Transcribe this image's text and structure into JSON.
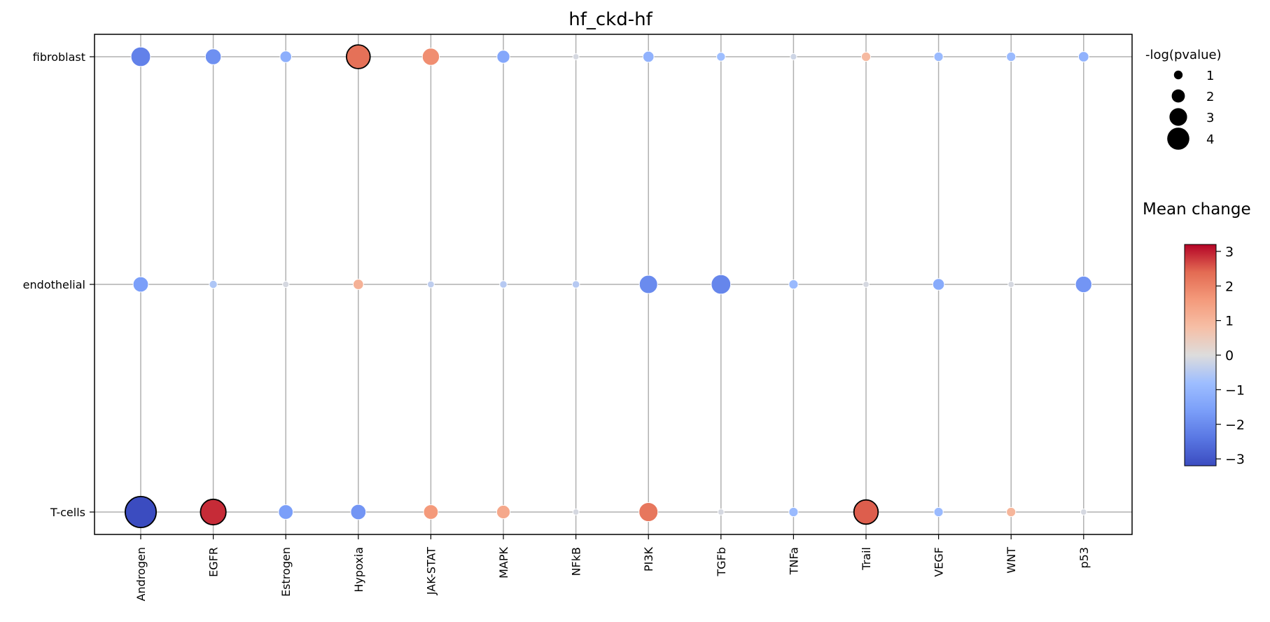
{
  "chart_data": {
    "type": "scatter",
    "title": "hf_ckd-hf",
    "xlabel": "",
    "ylabel": "",
    "categories": [
      "Androgen",
      "EGFR",
      "Estrogen",
      "Hypoxia",
      "JAK-STAT",
      "MAPK",
      "NFkB",
      "PI3K",
      "TGFb",
      "TNFa",
      "Trail",
      "VEGF",
      "WNT",
      "p53"
    ],
    "rows": [
      "fibroblast",
      "endothelial",
      "T-cells"
    ],
    "grid": true,
    "points": [
      {
        "row": "fibroblast",
        "pathway": "Androgen",
        "mean_change": -2.2,
        "neg_log_pvalue": 2.3,
        "highlighted": false
      },
      {
        "row": "fibroblast",
        "pathway": "EGFR",
        "mean_change": -1.9,
        "neg_log_pvalue": 1.7,
        "highlighted": false
      },
      {
        "row": "fibroblast",
        "pathway": "Estrogen",
        "mean_change": -1.2,
        "neg_log_pvalue": 1.0,
        "highlighted": false
      },
      {
        "row": "fibroblast",
        "pathway": "Hypoxia",
        "mean_change": 2.3,
        "neg_log_pvalue": 3.0,
        "highlighted": true
      },
      {
        "row": "fibroblast",
        "pathway": "JAK-STAT",
        "mean_change": 1.8,
        "neg_log_pvalue": 1.9,
        "highlighted": false
      },
      {
        "row": "fibroblast",
        "pathway": "MAPK",
        "mean_change": -1.4,
        "neg_log_pvalue": 1.2,
        "highlighted": false
      },
      {
        "row": "fibroblast",
        "pathway": "NFkB",
        "mean_change": -0.1,
        "neg_log_pvalue": 0.1,
        "highlighted": false
      },
      {
        "row": "fibroblast",
        "pathway": "PI3K",
        "mean_change": -1.1,
        "neg_log_pvalue": 0.9,
        "highlighted": false
      },
      {
        "row": "fibroblast",
        "pathway": "TGFb",
        "mean_change": -0.8,
        "neg_log_pvalue": 0.5,
        "highlighted": false
      },
      {
        "row": "fibroblast",
        "pathway": "TNFa",
        "mean_change": -0.2,
        "neg_log_pvalue": 0.15,
        "highlighted": false
      },
      {
        "row": "fibroblast",
        "pathway": "Trail",
        "mean_change": 0.9,
        "neg_log_pvalue": 0.6,
        "highlighted": false
      },
      {
        "row": "fibroblast",
        "pathway": "VEGF",
        "mean_change": -0.9,
        "neg_log_pvalue": 0.6,
        "highlighted": false
      },
      {
        "row": "fibroblast",
        "pathway": "WNT",
        "mean_change": -0.9,
        "neg_log_pvalue": 0.6,
        "highlighted": false
      },
      {
        "row": "fibroblast",
        "pathway": "p53",
        "mean_change": -1.1,
        "neg_log_pvalue": 0.8,
        "highlighted": false
      },
      {
        "row": "endothelial",
        "pathway": "Androgen",
        "mean_change": -1.6,
        "neg_log_pvalue": 1.6,
        "highlighted": false
      },
      {
        "row": "endothelial",
        "pathway": "EGFR",
        "mean_change": -0.6,
        "neg_log_pvalue": 0.4,
        "highlighted": false
      },
      {
        "row": "endothelial",
        "pathway": "Estrogen",
        "mean_change": -0.1,
        "neg_log_pvalue": 0.15,
        "highlighted": false
      },
      {
        "row": "endothelial",
        "pathway": "Hypoxia",
        "mean_change": 1.1,
        "neg_log_pvalue": 0.8,
        "highlighted": false
      },
      {
        "row": "endothelial",
        "pathway": "JAK-STAT",
        "mean_change": -0.4,
        "neg_log_pvalue": 0.2,
        "highlighted": false
      },
      {
        "row": "endothelial",
        "pathway": "MAPK",
        "mean_change": -0.5,
        "neg_log_pvalue": 0.3,
        "highlighted": false
      },
      {
        "row": "endothelial",
        "pathway": "NFkB",
        "mean_change": -0.5,
        "neg_log_pvalue": 0.3,
        "highlighted": false
      },
      {
        "row": "endothelial",
        "pathway": "PI3K",
        "mean_change": -2.0,
        "neg_log_pvalue": 2.1,
        "highlighted": false
      },
      {
        "row": "endothelial",
        "pathway": "TGFb",
        "mean_change": -2.1,
        "neg_log_pvalue": 2.3,
        "highlighted": false
      },
      {
        "row": "endothelial",
        "pathway": "TNFa",
        "mean_change": -0.9,
        "neg_log_pvalue": 0.6,
        "highlighted": false
      },
      {
        "row": "endothelial",
        "pathway": "Trail",
        "mean_change": -0.1,
        "neg_log_pvalue": 0.1,
        "highlighted": false
      },
      {
        "row": "endothelial",
        "pathway": "VEGF",
        "mean_change": -1.3,
        "neg_log_pvalue": 1.0,
        "highlighted": false
      },
      {
        "row": "endothelial",
        "pathway": "WNT",
        "mean_change": -0.1,
        "neg_log_pvalue": 0.1,
        "highlighted": false
      },
      {
        "row": "endothelial",
        "pathway": "p53",
        "mean_change": -1.8,
        "neg_log_pvalue": 1.8,
        "highlighted": false
      },
      {
        "row": "T-cells",
        "pathway": "Androgen",
        "mean_change": -3.2,
        "neg_log_pvalue": 4.2,
        "highlighted": true
      },
      {
        "row": "T-cells",
        "pathway": "EGFR",
        "mean_change": 2.9,
        "neg_log_pvalue": 3.3,
        "highlighted": true
      },
      {
        "row": "T-cells",
        "pathway": "Estrogen",
        "mean_change": -1.6,
        "neg_log_pvalue": 1.5,
        "highlighted": false
      },
      {
        "row": "T-cells",
        "pathway": "Hypoxia",
        "mean_change": -1.8,
        "neg_log_pvalue": 1.6,
        "highlighted": false
      },
      {
        "row": "T-cells",
        "pathway": "JAK-STAT",
        "mean_change": 1.6,
        "neg_log_pvalue": 1.5,
        "highlighted": false
      },
      {
        "row": "T-cells",
        "pathway": "MAPK",
        "mean_change": 1.3,
        "neg_log_pvalue": 1.3,
        "highlighted": false
      },
      {
        "row": "T-cells",
        "pathway": "NFkB",
        "mean_change": -0.1,
        "neg_log_pvalue": 0.1,
        "highlighted": false
      },
      {
        "row": "T-cells",
        "pathway": "PI3K",
        "mean_change": 2.2,
        "neg_log_pvalue": 2.2,
        "highlighted": false
      },
      {
        "row": "T-cells",
        "pathway": "TGFb",
        "mean_change": -0.1,
        "neg_log_pvalue": 0.1,
        "highlighted": false
      },
      {
        "row": "T-cells",
        "pathway": "TNFa",
        "mean_change": -0.9,
        "neg_log_pvalue": 0.6,
        "highlighted": false
      },
      {
        "row": "T-cells",
        "pathway": "Trail",
        "mean_change": 2.5,
        "neg_log_pvalue": 3.1,
        "highlighted": true
      },
      {
        "row": "T-cells",
        "pathway": "VEGF",
        "mean_change": -0.9,
        "neg_log_pvalue": 0.6,
        "highlighted": false
      },
      {
        "row": "T-cells",
        "pathway": "WNT",
        "mean_change": 1.0,
        "neg_log_pvalue": 0.6,
        "highlighted": false
      },
      {
        "row": "T-cells",
        "pathway": "p53",
        "mean_change": -0.1,
        "neg_log_pvalue": 0.1,
        "highlighted": false
      }
    ],
    "size_legend": {
      "title": "-log(pvalue)",
      "values": [
        1,
        2,
        3,
        4
      ],
      "labels": [
        "1",
        "2",
        "3",
        "4"
      ]
    },
    "colorbar": {
      "title": "Mean change",
      "colormap": "coolwarm",
      "vmin": -3.2,
      "vmax": 3.2,
      "ticks": [
        3,
        2,
        1,
        0,
        -1,
        -2,
        -3
      ],
      "tick_labels": [
        "3",
        "2",
        "1",
        "0",
        "−1",
        "−2",
        "−3"
      ]
    },
    "colors": {
      "low": "#3b4cc0",
      "mid": "#dddddd",
      "high": "#b40426",
      "grid": "#b0b0b0"
    }
  }
}
